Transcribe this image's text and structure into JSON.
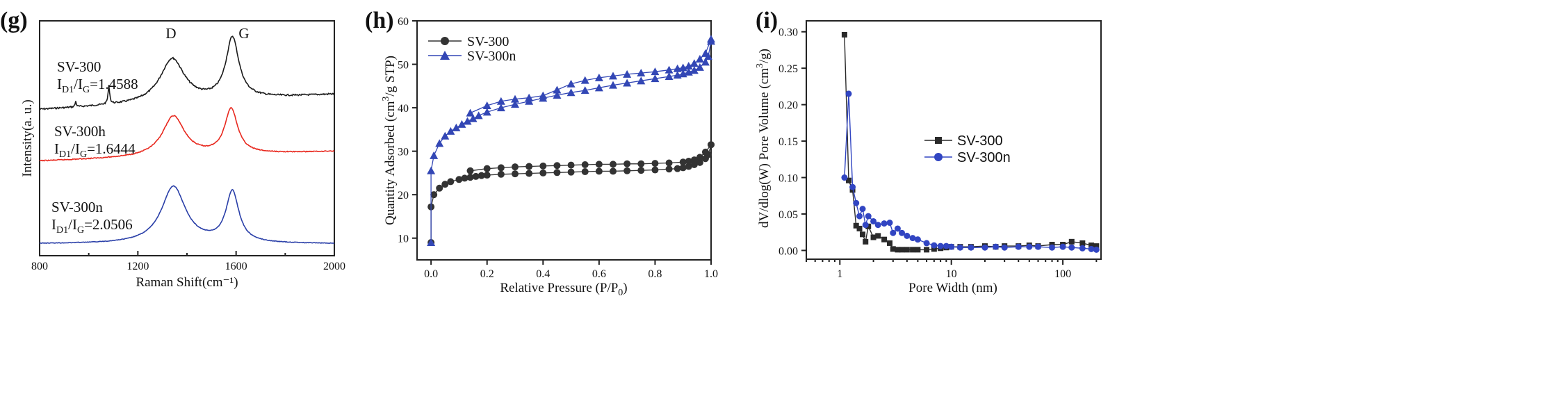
{
  "chart_data": [
    {
      "panel": "(g)",
      "type": "line",
      "xlabel": "Raman Shift(cm⁻¹)",
      "ylabel": "Intensity(a. u.)",
      "xlim": [
        800,
        2000
      ],
      "xticks": [
        800,
        1200,
        1600,
        2000
      ],
      "peaks": [
        "D",
        "G"
      ],
      "series": [
        {
          "name": "SV-300",
          "ratio_prefix": "I",
          "ratio_sub1": "D1",
          "ratio_sep": "/I",
          "ratio_sub2": "G",
          "ratio_value": "=1.4588",
          "color": "#1a1a1a",
          "D_center": 1340,
          "G_center": 1585
        },
        {
          "name": "SV-300h",
          "ratio_prefix": "I",
          "ratio_sub1": "D1",
          "ratio_sep": "/I",
          "ratio_sub2": "G",
          "ratio_value": "=1.6444",
          "color": "#e8281e",
          "D_center": 1345,
          "G_center": 1580
        },
        {
          "name": "SV-300n",
          "ratio_prefix": "I",
          "ratio_sub1": "D1",
          "ratio_sep": "/I",
          "ratio_sub2": "G",
          "ratio_value": "=2.0506",
          "color": "#2a3fa8",
          "D_center": 1345,
          "G_center": 1585
        }
      ]
    },
    {
      "panel": "(h)",
      "type": "line",
      "xlabel": "Relative Pressure (P/P₀)",
      "ylabel": "Quantity Adsorbed (cm³/g STP)",
      "xlim": [
        -0.05,
        1.0
      ],
      "ylim": [
        5,
        60
      ],
      "xticks": [
        "0.0",
        "0.2",
        "0.4",
        "0.6",
        "0.8",
        "1.0"
      ],
      "yticks": [
        "10",
        "20",
        "30",
        "40",
        "50",
        "60"
      ],
      "series": [
        {
          "name": "SV-300",
          "marker": "circle",
          "color": "#333333",
          "adsorption": {
            "x": [
              0.0,
              0.0,
              0.01,
              0.03,
              0.05,
              0.07,
              0.1,
              0.12,
              0.14,
              0.16,
              0.18,
              0.2,
              0.25,
              0.3,
              0.35,
              0.4,
              0.45,
              0.5,
              0.55,
              0.6,
              0.65,
              0.7,
              0.75,
              0.8,
              0.85,
              0.88,
              0.9,
              0.92,
              0.94,
              0.96,
              0.98,
              0.99,
              1.0
            ],
            "y": [
              9,
              17.2,
              20,
              21.5,
              22.4,
              23,
              23.5,
              23.8,
              24,
              24.2,
              24.4,
              24.5,
              24.7,
              24.8,
              24.9,
              25,
              25.1,
              25.2,
              25.3,
              25.4,
              25.4,
              25.5,
              25.6,
              25.7,
              25.9,
              26,
              26.2,
              26.5,
              26.9,
              27.4,
              28.3,
              29.2,
              31.5
            ]
          },
          "desorption": {
            "x": [
              1.0,
              0.98,
              0.96,
              0.94,
              0.92,
              0.9,
              0.85,
              0.8,
              0.75,
              0.7,
              0.65,
              0.6,
              0.55,
              0.5,
              0.45,
              0.4,
              0.35,
              0.3,
              0.25,
              0.2,
              0.14
            ],
            "y": [
              31.5,
              29.8,
              28.6,
              28,
              27.7,
              27.5,
              27.3,
              27.2,
              27.1,
              27.1,
              27,
              27,
              26.9,
              26.8,
              26.7,
              26.6,
              26.5,
              26.4,
              26.2,
              26,
              25.5
            ]
          }
        },
        {
          "name": "SV-300n",
          "marker": "triangle",
          "color": "#3347b5",
          "adsorption": {
            "x": [
              0.0,
              0.0,
              0.01,
              0.03,
              0.05,
              0.07,
              0.09,
              0.11,
              0.13,
              0.15,
              0.17,
              0.2,
              0.25,
              0.3,
              0.35,
              0.4,
              0.45,
              0.5,
              0.55,
              0.6,
              0.65,
              0.7,
              0.75,
              0.8,
              0.85,
              0.88,
              0.9,
              0.92,
              0.94,
              0.96,
              0.98,
              0.99,
              1.0
            ],
            "y": [
              9,
              25.5,
              29,
              31.8,
              33.5,
              34.6,
              35.4,
              36.2,
              36.9,
              37.5,
              38.2,
              39,
              40,
              40.8,
              41.5,
              42.2,
              42.9,
              43.5,
              44,
              44.6,
              45.2,
              45.7,
              46.2,
              46.7,
              47.2,
              47.5,
              47.8,
              48.2,
              48.6,
              49.3,
              50.5,
              51.8,
              55.3
            ]
          },
          "desorption": {
            "x": [
              1.0,
              0.98,
              0.96,
              0.94,
              0.92,
              0.9,
              0.88,
              0.85,
              0.8,
              0.75,
              0.7,
              0.65,
              0.6,
              0.55,
              0.5,
              0.45,
              0.4,
              0.35,
              0.3,
              0.25,
              0.2,
              0.14
            ],
            "y": [
              55.8,
              52.5,
              51.2,
              50.2,
              49.6,
              49.2,
              49,
              48.7,
              48.3,
              48,
              47.7,
              47.3,
              46.9,
              46.3,
              45.5,
              44.1,
              42.8,
              42.3,
              42,
              41.5,
              40.5,
              38.8
            ]
          }
        }
      ]
    },
    {
      "panel": "(i)",
      "type": "line",
      "xscale": "log",
      "xlabel": "Pore Width (nm)",
      "ylabel": "dV/dlog(W) Pore Volume (cm³/g)",
      "xlim": [
        0.5,
        220
      ],
      "ylim": [
        -0.012,
        0.315
      ],
      "xticks": [
        "1",
        "10",
        "100"
      ],
      "yticks": [
        "0.00",
        "0.05",
        "0.10",
        "0.15",
        "0.20",
        "0.25",
        "0.30"
      ],
      "legend_position": "center-right",
      "series": [
        {
          "name": "SV-300",
          "marker": "square",
          "color": "#2a2a2a",
          "x": [
            1.1,
            1.2,
            1.3,
            1.4,
            1.5,
            1.6,
            1.7,
            1.8,
            2.0,
            2.2,
            2.5,
            2.8,
            3.0,
            3.3,
            3.6,
            4,
            4.5,
            5,
            6,
            7,
            8,
            9,
            10,
            12,
            15,
            20,
            25,
            30,
            40,
            50,
            60,
            80,
            100,
            120,
            150,
            180,
            200
          ],
          "y": [
            0.296,
            0.096,
            0.083,
            0.034,
            0.03,
            0.022,
            0.012,
            0.033,
            0.018,
            0.02,
            0.015,
            0.01,
            0.002,
            0.001,
            0.001,
            0.001,
            0.001,
            0.001,
            0.001,
            0.002,
            0.003,
            0.004,
            0.005,
            0.005,
            0.005,
            0.006,
            0.005,
            0.006,
            0.006,
            0.007,
            0.006,
            0.008,
            0.008,
            0.012,
            0.01,
            0.007,
            0.006
          ]
        },
        {
          "name": "SV-300n",
          "marker": "circle",
          "color": "#3145c2",
          "x": [
            1.1,
            1.2,
            1.3,
            1.4,
            1.5,
            1.6,
            1.7,
            1.8,
            2.0,
            2.2,
            2.5,
            2.8,
            3.0,
            3.3,
            3.6,
            4,
            4.5,
            5,
            6,
            7,
            8,
            9,
            10,
            12,
            15,
            20,
            25,
            30,
            40,
            50,
            60,
            80,
            100,
            120,
            150,
            180,
            200
          ],
          "y": [
            0.1,
            0.215,
            0.087,
            0.065,
            0.047,
            0.057,
            0.035,
            0.047,
            0.04,
            0.035,
            0.037,
            0.038,
            0.024,
            0.03,
            0.024,
            0.02,
            0.017,
            0.015,
            0.01,
            0.007,
            0.006,
            0.006,
            0.005,
            0.004,
            0.004,
            0.004,
            0.005,
            0.004,
            0.005,
            0.005,
            0.005,
            0.004,
            0.005,
            0.004,
            0.003,
            0.002,
            0.001
          ]
        }
      ]
    }
  ]
}
